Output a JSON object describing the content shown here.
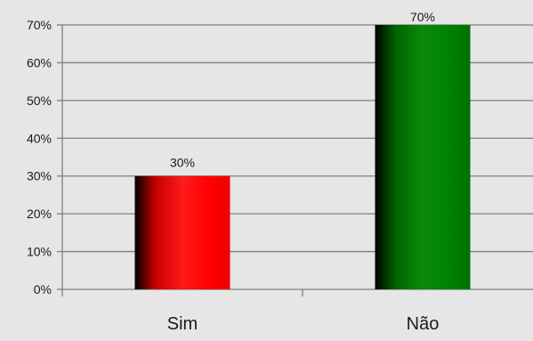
{
  "chart_data": {
    "type": "bar",
    "categories": [
      "Sim",
      "Não"
    ],
    "values": [
      30,
      70
    ],
    "data_labels": [
      "30%",
      "70%"
    ],
    "bar_colors": [
      "#ff0000",
      "#008000"
    ],
    "ylim": [
      0,
      70
    ],
    "yticks": [
      0,
      10,
      20,
      30,
      40,
      50,
      60,
      70
    ],
    "ytick_labels": [
      "0%",
      "10%",
      "20%",
      "30%",
      "40%",
      "50%",
      "60%",
      "70%"
    ],
    "grid": true,
    "legend": "none",
    "title": "",
    "xlabel": "",
    "ylabel": ""
  }
}
